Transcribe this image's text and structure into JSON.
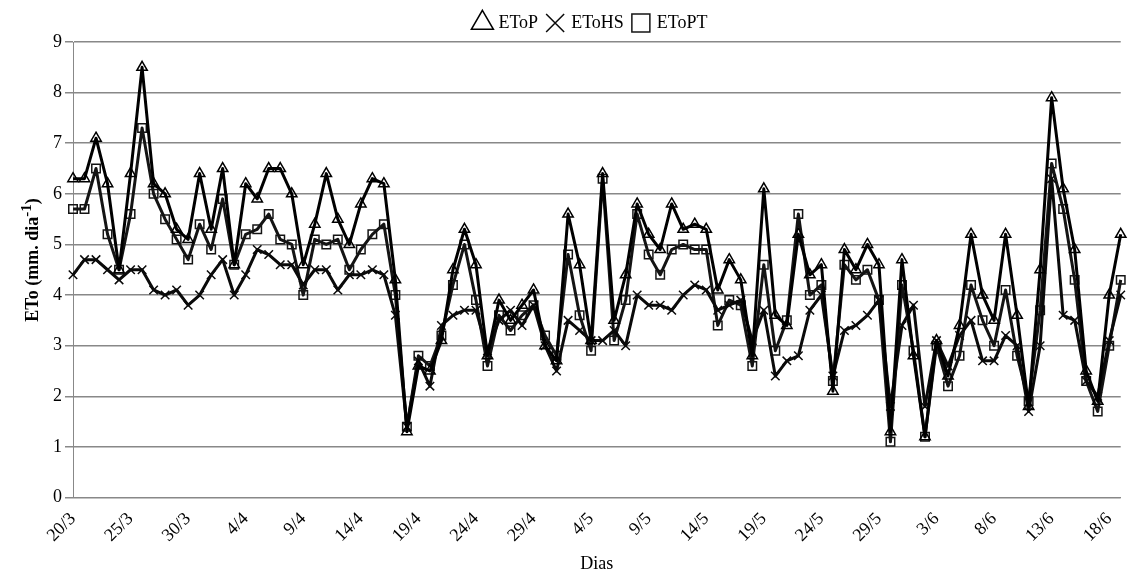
{
  "chart_data": {
    "type": "line",
    "xlabel": "Dias",
    "ylabel": "ETo (mm. dia$^{-1}$)",
    "categories": [
      "20/3",
      null,
      null,
      null,
      null,
      "25/3",
      null,
      null,
      null,
      null,
      "30/3",
      null,
      null,
      null,
      null,
      "4/4",
      null,
      null,
      null,
      null,
      "9/4",
      null,
      null,
      null,
      null,
      "14/4",
      null,
      null,
      null,
      null,
      "19/4",
      null,
      null,
      null,
      null,
      "24/4",
      null,
      null,
      null,
      null,
      "29/4",
      null,
      null,
      null,
      null,
      "4/5",
      null,
      null,
      null,
      null,
      "9/5",
      null,
      null,
      null,
      null,
      "14/5",
      null,
      null,
      null,
      null,
      "19/5",
      null,
      null,
      null,
      null,
      "24/5",
      null,
      null,
      null,
      null,
      "29/5",
      null,
      null,
      null,
      null,
      "3/6",
      null,
      null,
      null,
      null,
      "8/6",
      null,
      null,
      null,
      null,
      "13/6",
      null,
      null,
      null,
      null,
      "18/6",
      null
    ],
    "series": [
      {
        "name": "EToP",
        "color": "#000000",
        "marker": "triangle",
        "values": [
          6.3,
          6.3,
          7.1,
          6.2,
          4.5,
          6.4,
          8.5,
          6.2,
          6.0,
          5.3,
          5.1,
          6.4,
          5.3,
          6.5,
          4.6,
          6.2,
          5.9,
          6.5,
          6.5,
          6.0,
          4.6,
          5.4,
          6.4,
          5.5,
          5.0,
          5.8,
          6.3,
          6.2,
          4.3,
          1.3,
          2.6,
          2.5,
          3.1,
          4.5,
          5.3,
          4.6,
          2.8,
          3.9,
          3.5,
          3.8,
          4.1,
          3.0,
          2.7,
          5.6,
          4.6,
          3.1,
          6.4,
          3.5,
          4.4,
          5.8,
          5.2,
          4.9,
          5.8,
          5.3,
          5.4,
          5.3,
          4.1,
          4.7,
          4.3,
          2.8,
          6.1,
          3.6,
          3.4,
          5.2,
          4.4,
          4.6,
          2.1,
          4.9,
          4.5,
          5.0,
          4.6,
          1.3,
          4.7,
          2.8,
          1.2,
          3.1,
          2.4,
          3.4,
          5.2,
          4.0,
          3.5,
          5.2,
          3.6,
          1.8,
          4.5,
          7.9,
          6.1,
          4.9,
          2.5,
          1.9,
          4.0,
          5.2
        ]
      },
      {
        "name": "EToHS",
        "color": "#0a0a0a",
        "marker": "cross",
        "values": [
          4.4,
          4.7,
          4.7,
          4.5,
          4.3,
          4.5,
          4.5,
          4.1,
          4.0,
          4.1,
          3.8,
          4.0,
          4.4,
          4.7,
          4.0,
          4.4,
          4.9,
          4.8,
          4.6,
          4.6,
          4.2,
          4.5,
          4.5,
          4.1,
          4.4,
          4.4,
          4.5,
          4.4,
          3.6,
          1.4,
          2.7,
          2.2,
          3.4,
          3.6,
          3.7,
          3.7,
          2.9,
          3.5,
          3.7,
          3.4,
          3.8,
          3.0,
          2.5,
          3.5,
          3.3,
          3.1,
          3.1,
          3.3,
          3.0,
          4.0,
          3.8,
          3.8,
          3.7,
          4.0,
          4.2,
          4.1,
          3.7,
          3.8,
          3.9,
          3.1,
          3.7,
          2.4,
          2.7,
          2.8,
          3.7,
          4.0,
          2.4,
          3.3,
          3.4,
          3.6,
          3.9,
          1.8,
          3.4,
          3.8,
          1.8,
          3.1,
          2.6,
          3.2,
          3.5,
          2.7,
          2.7,
          3.2,
          3.0,
          1.7,
          3.0,
          6.3,
          3.6,
          3.5,
          2.3,
          2.0,
          3.1,
          4.0
        ]
      },
      {
        "name": "EToPT",
        "color": "#141414",
        "marker": "square",
        "values": [
          5.7,
          5.7,
          6.5,
          5.2,
          4.5,
          5.6,
          7.3,
          6.0,
          5.5,
          5.1,
          4.7,
          5.4,
          4.9,
          5.9,
          4.6,
          5.2,
          5.3,
          5.6,
          5.1,
          5.0,
          4.0,
          5.1,
          5.0,
          5.1,
          4.5,
          4.9,
          5.2,
          5.4,
          4.0,
          1.4,
          2.8,
          2.6,
          3.2,
          4.2,
          5.0,
          3.9,
          2.6,
          3.6,
          3.3,
          3.6,
          3.8,
          3.2,
          2.8,
          4.8,
          3.6,
          2.9,
          6.3,
          3.1,
          3.9,
          5.6,
          4.8,
          4.4,
          4.9,
          5.0,
          4.9,
          4.9,
          3.4,
          3.9,
          3.8,
          2.6,
          4.6,
          2.9,
          3.5,
          5.6,
          4.0,
          4.2,
          2.3,
          4.6,
          4.3,
          4.5,
          3.9,
          1.1,
          4.2,
          2.9,
          1.2,
          3.0,
          2.2,
          2.8,
          4.2,
          3.5,
          3.0,
          4.1,
          2.8,
          1.9,
          3.7,
          6.6,
          5.7,
          4.3,
          2.3,
          1.7,
          3.0,
          4.3
        ]
      }
    ],
    "ylim": [
      0,
      9
    ],
    "yticks": [
      0,
      1,
      2,
      3,
      4,
      5,
      6,
      7,
      8,
      9
    ],
    "grid": "y",
    "legend": "top",
    "line_style": "solid"
  }
}
